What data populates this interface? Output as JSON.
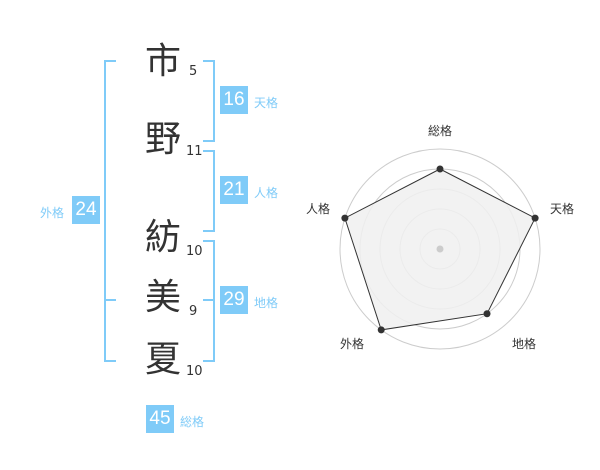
{
  "name": {
    "chars": [
      {
        "char": "市",
        "strokes": "5"
      },
      {
        "char": "野",
        "strokes": "11"
      },
      {
        "char": "紡",
        "strokes": "10"
      },
      {
        "char": "美",
        "strokes": "9"
      },
      {
        "char": "夏",
        "strokes": "10"
      }
    ]
  },
  "fortunes": {
    "tenkaku": {
      "label": "天格",
      "value": "16"
    },
    "jinkaku": {
      "label": "人格",
      "value": "21"
    },
    "chikaku": {
      "label": "地格",
      "value": "29"
    },
    "gaikaku": {
      "label": "外格",
      "value": "24"
    },
    "soukaku": {
      "label": "総格",
      "value": "45"
    }
  },
  "chart_data": {
    "type": "radar",
    "axes": [
      "総格",
      "天格",
      "地格",
      "外格",
      "人格"
    ],
    "values": [
      4,
      5,
      4,
      5,
      5
    ],
    "max": 5,
    "rings": 5,
    "colors": {
      "fill": "#f0f0f0",
      "line": "#333333",
      "grid": "#cccccc"
    }
  },
  "colors": {
    "accent": "#7fcbf8"
  }
}
